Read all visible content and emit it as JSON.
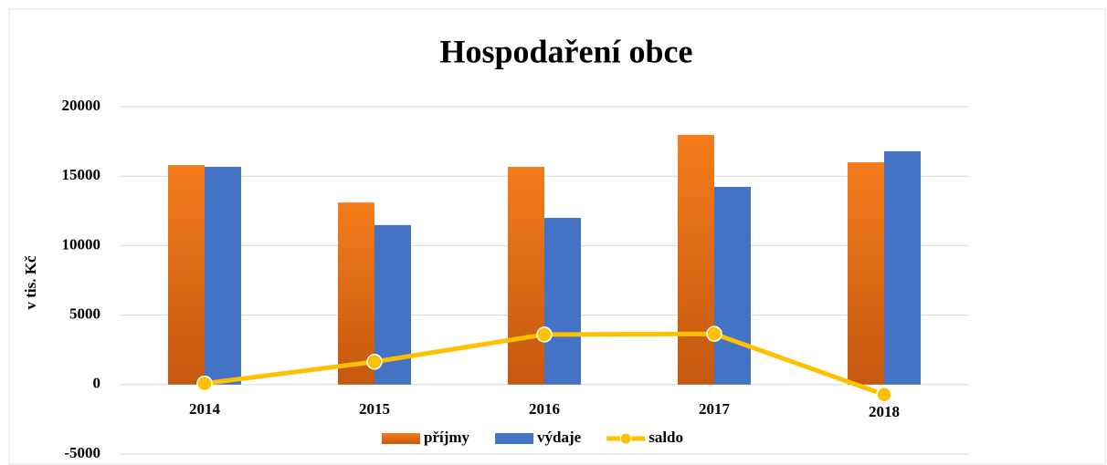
{
  "chart_data": {
    "type": "bar",
    "title": "Hospodaření obce",
    "y_label": "v tis. Kč",
    "categories": [
      "2014",
      "2015",
      "2016",
      "2017",
      "2018"
    ],
    "series": [
      {
        "name": "příjmy",
        "type": "bar",
        "color": "#ed7d31",
        "values": [
          15800,
          13100,
          15670,
          17970,
          16000
        ]
      },
      {
        "name": "výdaje",
        "type": "bar",
        "color": "#4472c4",
        "values": [
          15670,
          11480,
          12000,
          14230,
          16790
        ]
      },
      {
        "name": "saldo",
        "type": "line",
        "color": "#ffc000",
        "values": [
          80,
          1640,
          3600,
          3650,
          -720
        ]
      }
    ],
    "ylim": [
      -5000,
      20000
    ],
    "yticks": [
      -5000,
      0,
      5000,
      10000,
      15000,
      20000
    ],
    "grid": true,
    "legend": "bottom"
  }
}
